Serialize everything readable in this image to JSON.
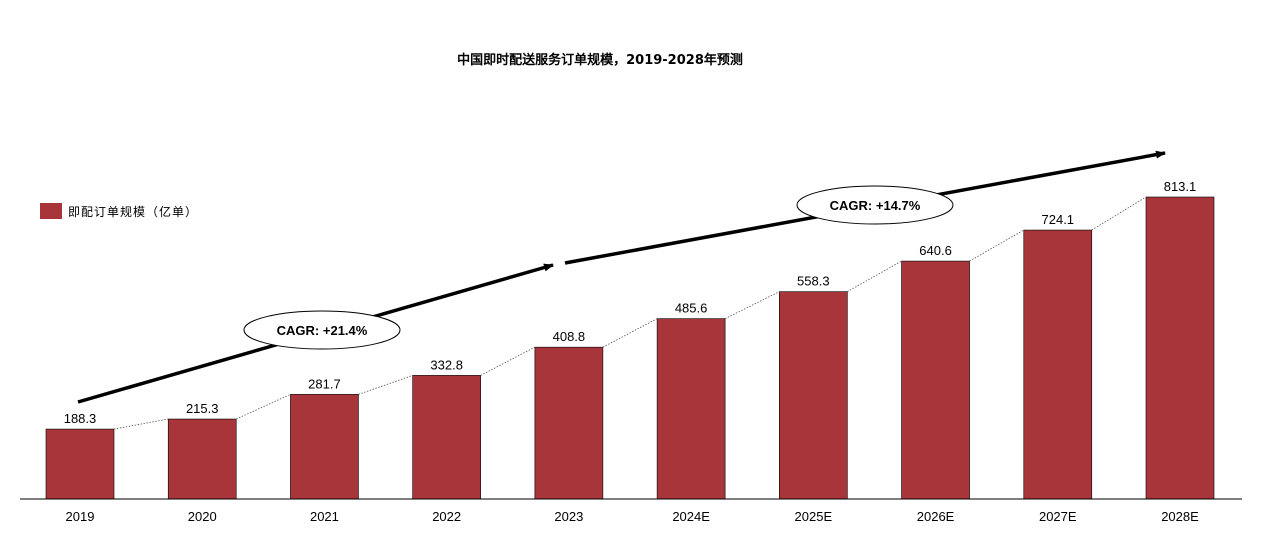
{
  "chart_data": {
    "type": "bar",
    "title": "中国即时配送服务订单规模，2019-2028年预测",
    "categories": [
      "2019",
      "2020",
      "2021",
      "2022",
      "2023",
      "2024E",
      "2025E",
      "2026E",
      "2027E",
      "2028E"
    ],
    "series": [
      {
        "name": "即配订单规模（亿单）",
        "values": [
          188.3,
          215.3,
          281.7,
          332.8,
          408.8,
          485.6,
          558.3,
          640.6,
          724.1,
          813.1
        ],
        "color": "#a8353a"
      }
    ],
    "ylim": [
      0,
      850
    ],
    "grid": false,
    "legend_position": "left",
    "annotations": [
      {
        "text": "CAGR: +21.4%"
      },
      {
        "text": "CAGR: +14.7%"
      }
    ]
  }
}
